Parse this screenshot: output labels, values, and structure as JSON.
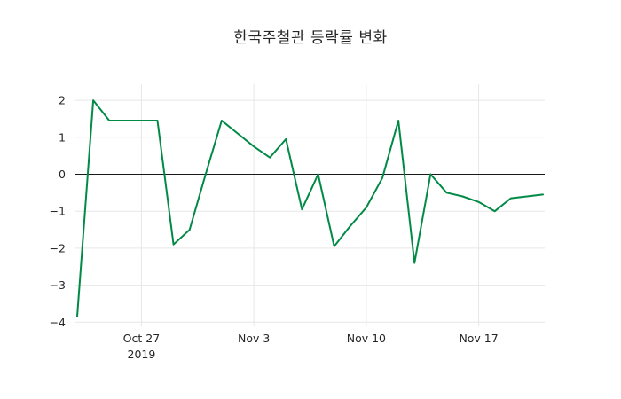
{
  "colors": {
    "line": "#008a46",
    "grid": "#e7e7e7",
    "zero_line": "#1a1a1a",
    "text": "#262626",
    "background": "#ffffff"
  },
  "chart_data": {
    "type": "line",
    "title": "한국주철관 등락률 변화",
    "xlabel": "",
    "ylabel": "",
    "ylim": [
      -4,
      2
    ],
    "grid": true,
    "legend": false,
    "x": [
      "Oct 23",
      "Oct 24",
      "Oct 25",
      "Oct 26",
      "Oct 27",
      "Oct 28",
      "Oct 29",
      "Oct 30",
      "Oct 31",
      "Nov 1",
      "Nov 2",
      "Nov 3",
      "Nov 4",
      "Nov 5",
      "Nov 6",
      "Nov 7",
      "Nov 8",
      "Nov 9",
      "Nov 10",
      "Nov 11",
      "Nov 12",
      "Nov 13",
      "Nov 14",
      "Nov 15",
      "Nov 16",
      "Nov 17",
      "Nov 18",
      "Nov 19",
      "Nov 20",
      "Nov 21"
    ],
    "y": [
      -3.85,
      2.0,
      1.45,
      1.45,
      1.45,
      1.45,
      -1.9,
      -1.5,
      0.0,
      1.45,
      1.1,
      0.75,
      0.45,
      0.95,
      -0.95,
      0.0,
      -1.95,
      -1.4,
      -0.9,
      -0.1,
      1.45,
      -2.4,
      0.0,
      -0.5,
      -0.6,
      -0.75,
      -1.0,
      -0.65,
      -0.6,
      -0.55
    ],
    "x_ticks": [
      {
        "index": 4,
        "label": "Oct 27",
        "sublabel": "2019"
      },
      {
        "index": 11,
        "label": "Nov 3"
      },
      {
        "index": 18,
        "label": "Nov 10"
      },
      {
        "index": 25,
        "label": "Nov 17"
      }
    ],
    "y_ticks": [
      {
        "value": 2,
        "label": "2"
      },
      {
        "value": 1,
        "label": "1"
      },
      {
        "value": 0,
        "label": "0"
      },
      {
        "value": -1,
        "label": "−1"
      },
      {
        "value": -2,
        "label": "−2"
      },
      {
        "value": -3,
        "label": "−3"
      },
      {
        "value": -4,
        "label": "−4"
      }
    ]
  }
}
